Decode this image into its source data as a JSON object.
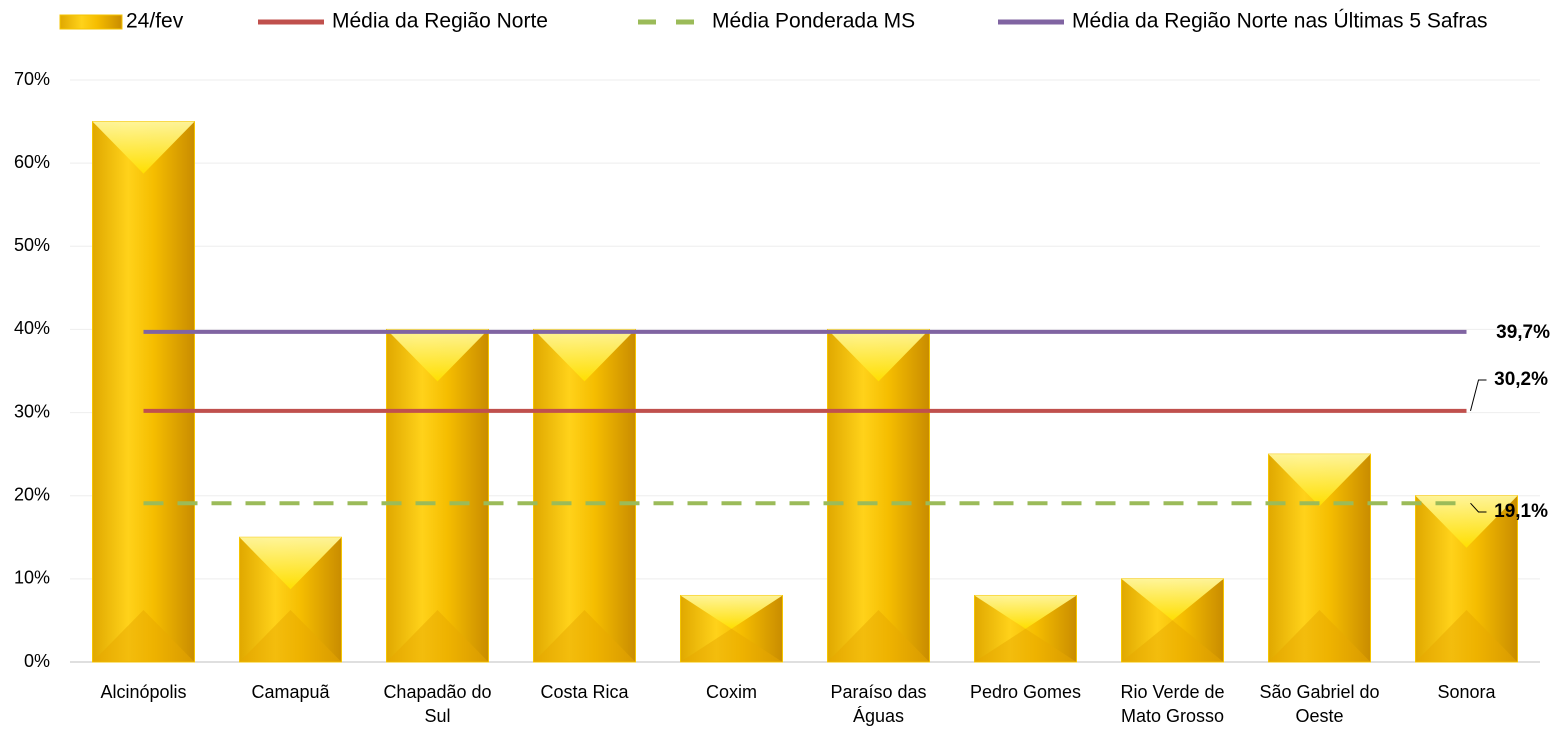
{
  "chart_data": {
    "type": "bar",
    "categories": [
      "Alcinópolis",
      "Camapuã",
      "Chapadão do Sul",
      "Costa Rica",
      "Coxim",
      "Paraíso das Águas",
      "Pedro Gomes",
      "Rio Verde de Mato Grosso",
      "São Gabriel do Oeste",
      "Sonora"
    ],
    "series": [
      {
        "name": "24/fev",
        "color": "#f5c400",
        "values": [
          65,
          15,
          40,
          40,
          8,
          40,
          8,
          10,
          25,
          20
        ]
      }
    ],
    "reference_lines": [
      {
        "name": "Média da Região Norte",
        "color": "#c0504d",
        "dashed": false,
        "value": 30.2,
        "value_label": "30,2%"
      },
      {
        "name": "Média Ponderada MS",
        "color": "#9bbb59",
        "dashed": true,
        "value": 19.1,
        "value_label": "19,1%"
      },
      {
        "name": "Média da Região Norte nas Últimas 5 Safras",
        "color": "#8064a2",
        "dashed": false,
        "value": 39.7,
        "value_label": "39,7%"
      }
    ],
    "ylim": [
      0,
      70
    ],
    "yticks": [
      {
        "value": 0,
        "label": "0%"
      },
      {
        "value": 10,
        "label": "10%"
      },
      {
        "value": 20,
        "label": "20%"
      },
      {
        "value": 30,
        "label": "30%"
      },
      {
        "value": 40,
        "label": "40%"
      },
      {
        "value": 50,
        "label": "50%"
      },
      {
        "value": 60,
        "label": "60%"
      },
      {
        "value": 70,
        "label": "70%"
      }
    ],
    "grid": true
  }
}
